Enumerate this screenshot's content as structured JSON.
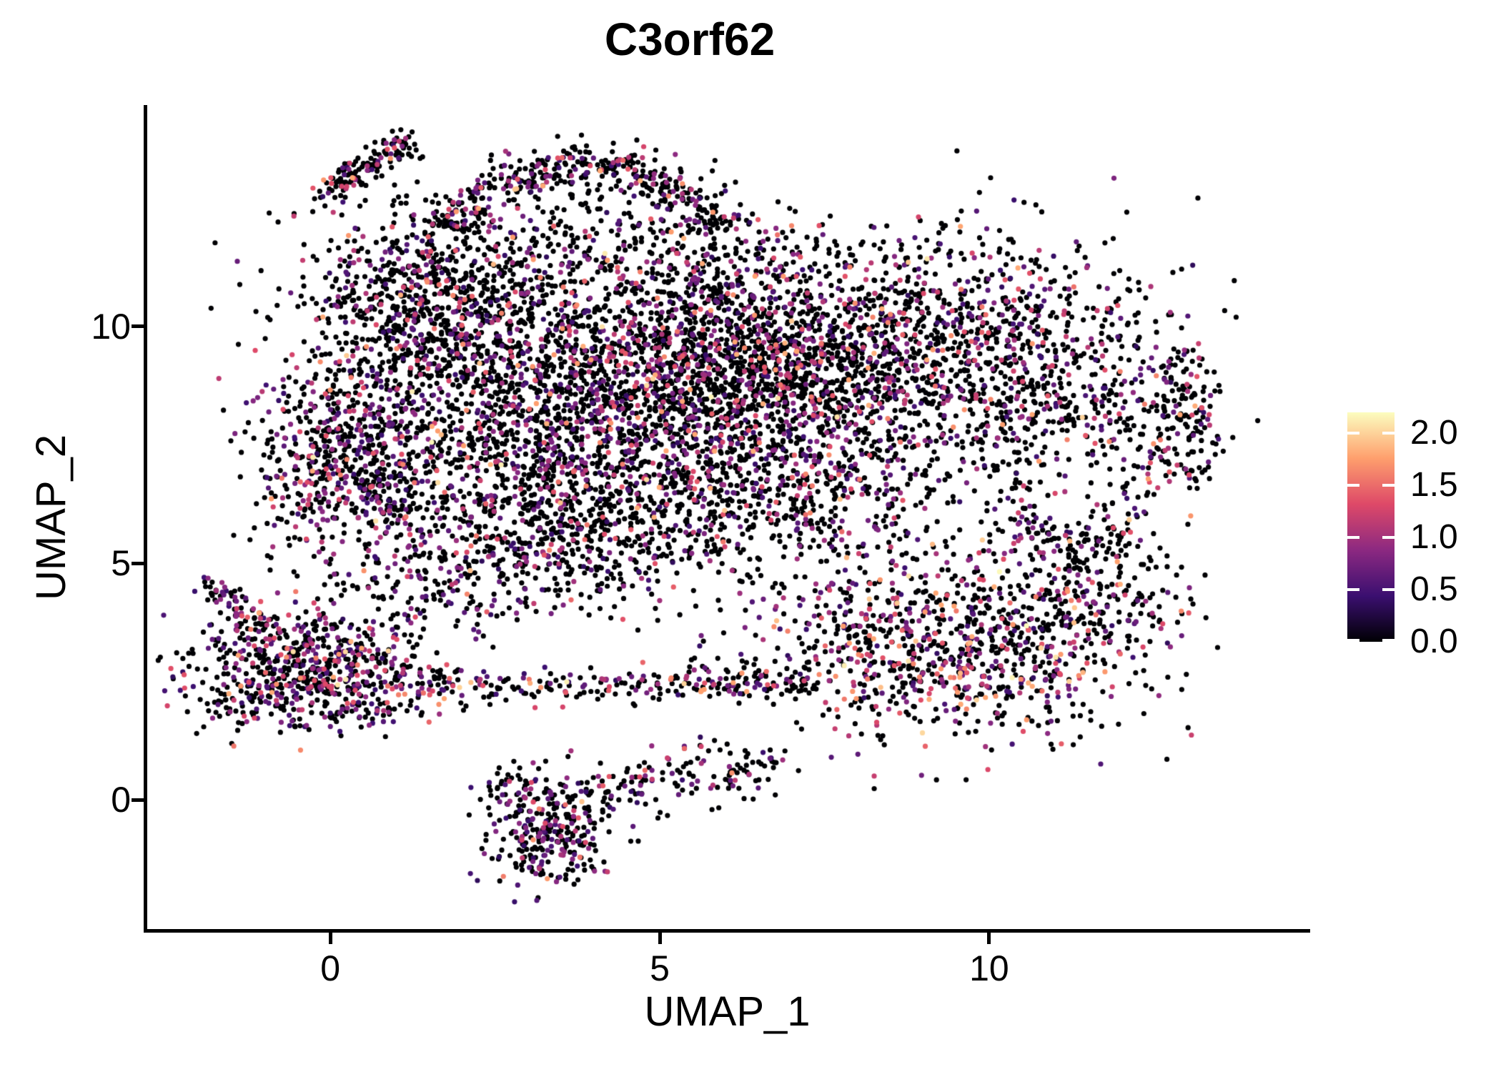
{
  "title": "C3orf62",
  "axes": {
    "xlabel": "UMAP_1",
    "ylabel": "UMAP_2",
    "x_ticks": [
      {
        "label": "0",
        "value": 0
      },
      {
        "label": "5",
        "value": 5
      },
      {
        "label": "10",
        "value": 10
      }
    ],
    "y_ticks": [
      {
        "label": "0",
        "value": 0
      },
      {
        "label": "5",
        "value": 5
      },
      {
        "label": "10",
        "value": 10
      }
    ],
    "axis_color": "#000000",
    "background": "#ffffff"
  },
  "legend": {
    "ticks": [
      {
        "label": "2.0",
        "value": 2.0
      },
      {
        "label": "1.5",
        "value": 1.5
      },
      {
        "label": "1.0",
        "value": 1.0
      },
      {
        "label": "0.5",
        "value": 0.5
      },
      {
        "label": "0.0",
        "value": 0.0
      }
    ],
    "vmax": 2.2,
    "colormap_name": "magma",
    "colormap_stops": [
      "#000004",
      "#3B0F70",
      "#8C2981",
      "#DE4968",
      "#FE9F6D",
      "#FCFDBF"
    ]
  },
  "chart_data": {
    "type": "scatter",
    "title": "C3orf62",
    "xlabel": "UMAP_1",
    "ylabel": "UMAP_2",
    "xlim": [
      -2.79,
      14.84
    ],
    "ylim": [
      -2.76,
      14.68
    ],
    "point_radius_px": 3.6,
    "seed": 42,
    "expression_levels": [
      [
        0,
        0
      ],
      [
        0.35,
        0.9
      ],
      [
        0.9,
        1.4
      ],
      [
        1.4,
        1.85
      ],
      [
        1.85,
        2.2
      ]
    ],
    "expression_profiles": {
      "base": [
        0.72,
        0.17,
        0.08,
        0.025,
        0.005
      ],
      "purple": [
        0.6,
        0.25,
        0.12,
        0.025,
        0.005
      ],
      "warm": [
        0.64,
        0.18,
        0.1,
        0.06,
        0.02
      ]
    },
    "clusters": [
      {
        "name": "top-cap-arc",
        "type": "arc",
        "cx": 3.85,
        "cy": 10.95,
        "rx": 2.3,
        "ry": 2.5,
        "a1": 25,
        "a2": 155,
        "sd": 0.22,
        "n": 400,
        "profile": "base"
      },
      {
        "name": "top-cap-fill",
        "type": "gauss",
        "cx": 4.3,
        "cy": 12.1,
        "sx": 1.3,
        "sy": 0.65,
        "rot": -8,
        "n": 170,
        "profile": "base"
      },
      {
        "name": "top-left-arm",
        "type": "band",
        "x1": -0.1,
        "y1": 12.85,
        "x2": 1.25,
        "y2": 13.95,
        "sd": 0.17,
        "n": 140,
        "profile": "base"
      },
      {
        "name": "cap-bridge",
        "type": "gauss",
        "cx": 5.6,
        "cy": 11.3,
        "sx": 1.6,
        "sy": 0.55,
        "n": 200,
        "profile": "base"
      },
      {
        "name": "upper-left-lobe",
        "type": "gauss",
        "cx": 1.6,
        "cy": 10.5,
        "sx": 1.05,
        "sy": 0.95,
        "rot": -18,
        "n": 850,
        "profile": "base"
      },
      {
        "name": "left-bulge",
        "type": "gauss",
        "cx": 0.35,
        "cy": 7.3,
        "sx": 0.75,
        "sy": 1.05,
        "n": 650,
        "profile": "purple"
      },
      {
        "name": "center",
        "type": "gauss",
        "cx": 3.6,
        "cy": 8.4,
        "sx": 1.5,
        "sy": 1.35,
        "n": 1350,
        "profile": "base"
      },
      {
        "name": "right-dense",
        "type": "gauss",
        "cx": 6.3,
        "cy": 9.2,
        "sx": 1.55,
        "sy": 1.05,
        "n": 1650,
        "profile": "base"
      },
      {
        "name": "lower-center",
        "type": "gauss",
        "cx": 3.3,
        "cy": 5.8,
        "sx": 1.55,
        "sy": 0.9,
        "n": 750,
        "profile": "base"
      },
      {
        "name": "mid-right",
        "type": "gauss",
        "cx": 6.8,
        "cy": 6.8,
        "sx": 1.35,
        "sy": 1.0,
        "n": 680,
        "profile": "base"
      },
      {
        "name": "left-gap-sparse",
        "type": "gauss",
        "cx": 1.3,
        "cy": 4.4,
        "sx": 0.9,
        "sy": 0.5,
        "n": 120,
        "profile": "base"
      },
      {
        "name": "right-lobe",
        "type": "gauss",
        "cx": 9.8,
        "cy": 9.4,
        "sx": 1.45,
        "sy": 1.25,
        "n": 1050,
        "profile": "base"
      },
      {
        "name": "right-ring",
        "type": "arc",
        "cx": 11.3,
        "cy": 6.85,
        "rx": 1.0,
        "ry": 1.55,
        "a1": 0,
        "a2": 360,
        "sd": 0.28,
        "n": 260,
        "profile": "base"
      },
      {
        "name": "right-edge",
        "type": "band",
        "x1": 12.85,
        "y1": 9.6,
        "x2": 13.05,
        "y2": 6.6,
        "sd": 0.28,
        "n": 150,
        "profile": "base"
      },
      {
        "name": "lower-right",
        "type": "gauss",
        "cx": 9.3,
        "cy": 3.2,
        "sx": 1.5,
        "sy": 1.0,
        "rot": -10,
        "n": 950,
        "profile": "warm"
      },
      {
        "name": "lower-right-ext",
        "type": "gauss",
        "cx": 11.6,
        "cy": 4.4,
        "sx": 0.7,
        "sy": 0.85,
        "n": 240,
        "profile": "warm"
      },
      {
        "name": "left-cluster",
        "type": "gauss",
        "cx": -0.35,
        "cy": 2.65,
        "sx": 0.92,
        "sy": 0.62,
        "n": 720,
        "profile": "purple"
      },
      {
        "name": "left-tail",
        "type": "band",
        "x1": -1.85,
        "y1": 4.6,
        "x2": -0.9,
        "y2": 3.4,
        "sd": 0.16,
        "n": 80,
        "profile": "purple"
      },
      {
        "name": "mid-band",
        "type": "band",
        "x1": 1.1,
        "y1": 2.35,
        "x2": 7.4,
        "y2": 2.5,
        "sd": 0.18,
        "n": 260,
        "profile": "warm"
      },
      {
        "name": "bottom-chain",
        "type": "band",
        "x1": 2.5,
        "y1": 0.1,
        "x2": 6.9,
        "y2": 0.75,
        "sd": 0.33,
        "n": 220,
        "profile": "base"
      },
      {
        "name": "bottom-blob",
        "type": "gauss",
        "cx": 3.3,
        "cy": -0.7,
        "sx": 0.45,
        "sy": 0.55,
        "n": 260,
        "profile": "purple"
      }
    ]
  }
}
